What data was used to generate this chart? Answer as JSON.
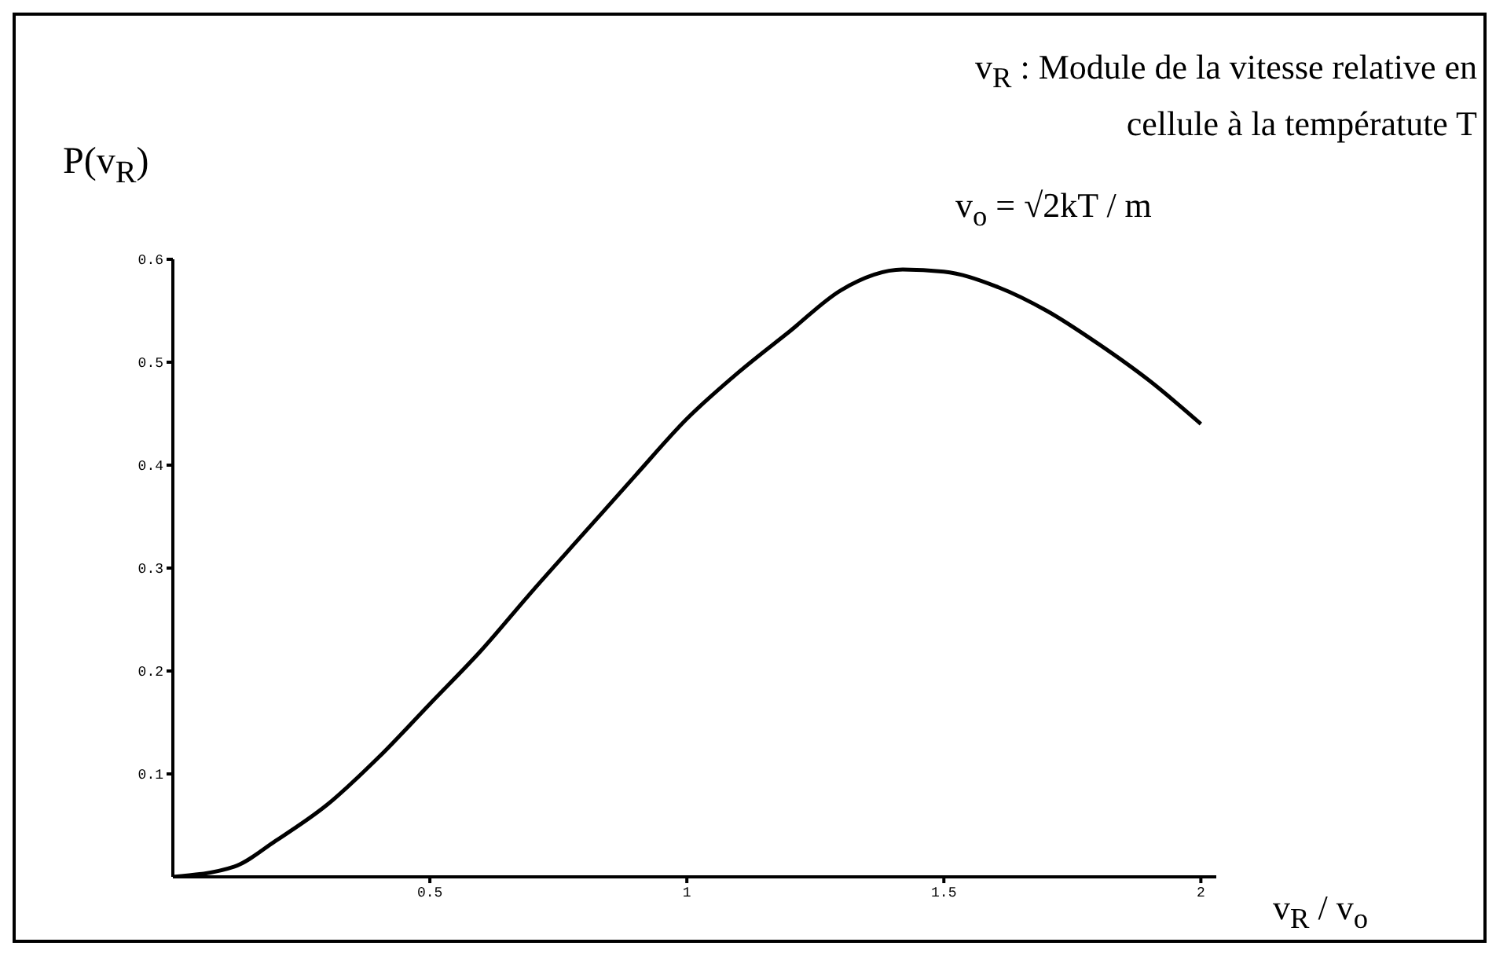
{
  "chart_data": {
    "type": "line",
    "xlabel": "v$_{R}$ / v$_{o}$",
    "ylabel": "P(v$_{R}$)",
    "annotations": [
      "v$_{R}$ :  Module de la vitesse relative en cellule à la températute T",
      "v$_{o}$ = √2kT / m"
    ],
    "x": [
      0,
      0.12,
      0.2,
      0.3,
      0.4,
      0.5,
      0.6,
      0.7,
      0.8,
      0.9,
      1,
      1.1,
      1.2,
      1.3,
      1.42,
      1.5,
      1.6,
      1.7,
      1.8,
      1.9,
      2
    ],
    "series": [
      {
        "color": "#000000",
        "values": [
          0,
          0.01,
          0.035,
          0.07,
          0.116,
          0.168,
          0.22,
          0.278,
          0.334,
          0.39,
          0.445,
          0.49,
          0.53,
          0.57,
          0.59,
          0.588,
          0.574,
          0.55,
          0.518,
          0.482,
          0.44
        ]
      }
    ],
    "xlim": [
      0,
      2.03
    ],
    "xticks": [
      0.5,
      1,
      1.5,
      2
    ],
    "ylim": [
      0,
      0.6
    ],
    "yticks": [
      0.1,
      0.2,
      0.3,
      0.4,
      0.5,
      0.6
    ],
    "grid": false,
    "legend": false,
    "marker": "none",
    "line_style": "solid"
  }
}
